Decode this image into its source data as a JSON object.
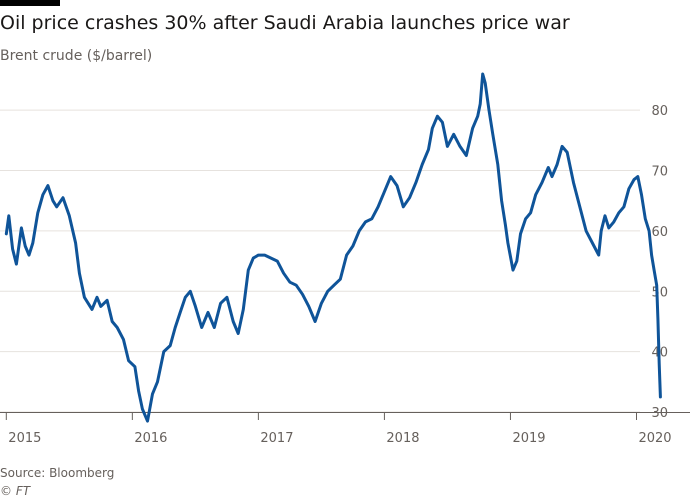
{
  "header": {
    "title": "Oil price crashes 30% after Saudi Arabia launches price war",
    "subtitle": "Brent crude ($/barrel)"
  },
  "footer": {
    "source": "Source: Bloomberg",
    "credit": "© FT"
  },
  "colors": {
    "line": "#0f5499",
    "grid": "#e6e2de",
    "axis": "#66605c"
  },
  "chart_data": {
    "type": "line",
    "title": "Oil price crashes 30% after Saudi Arabia launches price war",
    "subtitle": "Brent crude ($/barrel)",
    "xlabel": "",
    "ylabel": "",
    "xlim": [
      2014.95,
      2020.25
    ],
    "ylim": [
      30,
      85
    ],
    "x_ticks": [
      2015,
      2016,
      2017,
      2018,
      2019,
      2020
    ],
    "x_tick_labels": [
      "2015",
      "2016",
      "2017",
      "2018",
      "2019",
      "2020"
    ],
    "y_ticks": [
      30,
      40,
      50,
      60,
      70,
      80
    ],
    "y_tick_labels": [
      "30",
      "40",
      "50",
      "60",
      "70",
      "80"
    ],
    "y_axis_side": "right",
    "grid": "horizontal",
    "series": [
      {
        "name": "",
        "x": [
          2015.0,
          2015.02,
          2015.05,
          2015.08,
          2015.12,
          2015.15,
          2015.18,
          2015.21,
          2015.25,
          2015.29,
          2015.33,
          2015.37,
          2015.4,
          2015.45,
          2015.5,
          2015.55,
          2015.58,
          2015.62,
          2015.68,
          2015.72,
          2015.75,
          2015.8,
          2015.84,
          2015.88,
          2015.93,
          2015.97,
          2016.02,
          2016.05,
          2016.08,
          2016.12,
          2016.16,
          2016.2,
          2016.25,
          2016.3,
          2016.34,
          2016.38,
          2016.42,
          2016.46,
          2016.5,
          2016.55,
          2016.6,
          2016.65,
          2016.7,
          2016.75,
          2016.8,
          2016.84,
          2016.88,
          2016.92,
          2016.96,
          2017.0,
          2017.05,
          2017.1,
          2017.15,
          2017.2,
          2017.25,
          2017.3,
          2017.35,
          2017.4,
          2017.45,
          2017.5,
          2017.55,
          2017.6,
          2017.65,
          2017.7,
          2017.75,
          2017.8,
          2017.85,
          2017.9,
          2017.95,
          2018.0,
          2018.05,
          2018.1,
          2018.15,
          2018.2,
          2018.25,
          2018.3,
          2018.35,
          2018.38,
          2018.42,
          2018.46,
          2018.5,
          2018.55,
          2018.6,
          2018.65,
          2018.7,
          2018.74,
          2018.76,
          2018.78,
          2018.8,
          2018.83,
          2018.86,
          2018.9,
          2018.93,
          2018.96,
          2018.98,
          2019.02,
          2019.05,
          2019.08,
          2019.12,
          2019.16,
          2019.2,
          2019.25,
          2019.3,
          2019.33,
          2019.37,
          2019.41,
          2019.45,
          2019.5,
          2019.55,
          2019.6,
          2019.65,
          2019.7,
          2019.72,
          2019.75,
          2019.78,
          2019.82,
          2019.86,
          2019.9,
          2019.94,
          2019.98,
          2020.01,
          2020.04,
          2020.07,
          2020.1,
          2020.12,
          2020.14,
          2020.16,
          2020.17,
          2020.18,
          2020.19
        ],
        "y": [
          59.5,
          62.5,
          57,
          54.5,
          60.5,
          57.5,
          56,
          58,
          63,
          66,
          67.5,
          65,
          64,
          65.5,
          62.5,
          58,
          53,
          49,
          47,
          49,
          47.5,
          48.5,
          45,
          44,
          42,
          38.5,
          37.5,
          33.5,
          30.5,
          28.5,
          33,
          35,
          40,
          41,
          44,
          46.5,
          49,
          50,
          47.5,
          44,
          46.5,
          44,
          48,
          49,
          45,
          43,
          47,
          53.5,
          55.5,
          56,
          56,
          55.5,
          55,
          53,
          51.5,
          51,
          49.5,
          47.5,
          45,
          48,
          50,
          51,
          52,
          56,
          57.5,
          60,
          61.5,
          62,
          64,
          66.5,
          69,
          67.5,
          64,
          65.5,
          68,
          71,
          73.5,
          77,
          79,
          78,
          74,
          76,
          74,
          72.5,
          77,
          79,
          81,
          86,
          84.5,
          80,
          76,
          71,
          65,
          61,
          58,
          53.5,
          55,
          59.5,
          62,
          63,
          66,
          68,
          70.5,
          69,
          71,
          74,
          73,
          68,
          64,
          60,
          58,
          56,
          60,
          62.5,
          60.5,
          61.5,
          63,
          64,
          67,
          68.5,
          69,
          66,
          62,
          60,
          56,
          53.5,
          51,
          45.5,
          38,
          32.5
        ]
      }
    ],
    "annotations": []
  }
}
